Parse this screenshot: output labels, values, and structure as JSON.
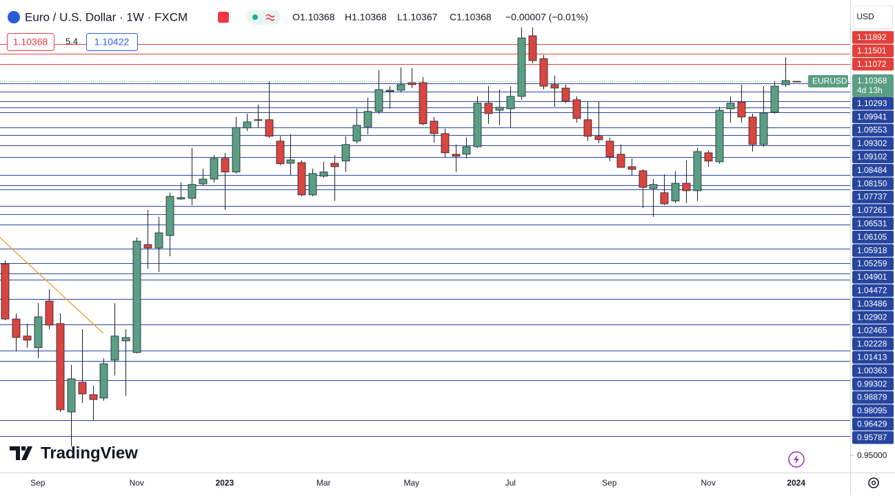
{
  "header": {
    "symbol": "Euro / U.S. Dollar · 1W · FXCM",
    "open": "O1.10368",
    "high": "H1.10368",
    "low": "L1.10367",
    "close": "C1.10368",
    "change": "−0.00007 (−0.01%)"
  },
  "toolbar": {
    "bid": "1.10368",
    "spread": "5.4",
    "ask": "1.10422",
    "currency": "USD"
  },
  "logo": "TradingView",
  "chart_data": {
    "type": "candlestick",
    "categories": [
      null,
      null,
      null,
      "Sep",
      null,
      null,
      null,
      null,
      null,
      null,
      null,
      null,
      "Nov",
      null,
      null,
      null,
      null,
      null,
      null,
      null,
      "2023",
      null,
      null,
      null,
      null,
      null,
      null,
      null,
      null,
      "Mar",
      null,
      null,
      null,
      null,
      null,
      null,
      null,
      "May",
      null,
      null,
      null,
      null,
      null,
      null,
      null,
      null,
      "Jul",
      null,
      null,
      null,
      null,
      null,
      null,
      null,
      null,
      "Sep",
      null,
      null,
      null,
      null,
      null,
      null,
      null,
      null,
      "Nov",
      null,
      null,
      null,
      null,
      null,
      null,
      null,
      "2024"
    ],
    "series": [
      {
        "name": "EURUSD",
        "open": [
          1.0287,
          1.006,
          0.999,
          0.9942,
          1.0134,
          1.0041,
          0.9678,
          0.98,
          0.9749,
          0.9735,
          0.9891,
          0.997,
          0.9922,
          1.0366,
          1.0352,
          1.0403,
          1.0553,
          1.0556,
          1.0615,
          1.0635,
          1.072,
          1.0664,
          1.0845,
          1.0876,
          1.0879,
          1.0791,
          1.07,
          1.0703,
          1.057,
          1.0647,
          1.07,
          1.0709,
          1.0791,
          1.085,
          1.0913,
          1.0995,
          1.1,
          1.1031,
          1.1031,
          1.0873,
          1.0822,
          1.0737,
          1.0737,
          1.0768,
          1.0947,
          1.0918,
          1.0924,
          1.0975,
          1.1224,
          1.113,
          1.1023,
          1.1009,
          1.0961,
          1.0879,
          1.0811,
          1.0791,
          1.0737,
          1.0686,
          1.0669,
          1.0596,
          1.0579,
          1.0545,
          1.0618,
          1.0587,
          1.0743,
          1.0706,
          1.0924,
          1.0952,
          1.089,
          1.0777,
          1.091,
          1.1023,
          1.10368
        ],
        "high": [
          1.0301,
          1.0083,
          1.0041,
          1.0125,
          1.0182,
          1.0083,
          0.9871,
          1.0018,
          0.9786,
          0.9899,
          1.0125,
          1.0018,
          1.0395,
          1.0508,
          1.048,
          1.0579,
          1.0621,
          1.0763,
          1.0678,
          1.0734,
          1.0743,
          1.089,
          1.0904,
          1.0941,
          1.1037,
          1.0811,
          1.0819,
          1.0712,
          1.0678,
          1.0706,
          1.0734,
          1.0811,
          1.0924,
          1.0969,
          1.1082,
          1.1017,
          1.1094,
          1.1091,
          1.1054,
          1.089,
          1.0842,
          1.0777,
          1.0805,
          1.0975,
          1.1017,
          1.1003,
          1.1017,
          1.1258,
          1.1258,
          1.1145,
          1.106,
          1.1023,
          1.0975,
          1.0952,
          1.0952,
          1.0805,
          1.0777,
          1.072,
          1.0675,
          1.0635,
          1.0655,
          1.0669,
          1.0712,
          1.0763,
          1.0754,
          1.0932,
          1.0975,
          1.1023,
          1.0904,
          1.1017,
          1.1037,
          1.1136,
          1.10368
        ],
        "low": [
          1.0055,
          0.9927,
          0.9942,
          0.9899,
          1.0018,
          0.9678,
          0.9537,
          0.9715,
          0.9644,
          0.9724,
          0.9829,
          0.9744,
          0.9918,
          1.0267,
          1.0253,
          1.0318,
          1.055,
          1.0528,
          1.0607,
          1.0621,
          1.0508,
          1.0658,
          1.0833,
          1.0847,
          1.0805,
          1.0692,
          1.0649,
          1.0564,
          1.0564,
          1.0641,
          1.0545,
          1.0664,
          1.0782,
          1.0819,
          1.0904,
          1.0924,
          1.0992,
          1.1009,
          1.0856,
          1.0785,
          1.0726,
          1.0664,
          1.072,
          1.0763,
          1.0862,
          1.0856,
          1.0847,
          1.0961,
          1.1111,
          1.1003,
          1.0932,
          1.0947,
          1.0867,
          1.0791,
          1.0782,
          1.0709,
          1.0683,
          1.0649,
          1.0516,
          1.048,
          1.0528,
          1.0536,
          1.0536,
          1.0545,
          1.0686,
          1.0698,
          1.0867,
          1.0867,
          1.0748,
          1.0768,
          1.0904,
          1.1014,
          1.10367
        ],
        "close": [
          1.006,
          0.9984,
          0.9973,
          1.0069,
          1.0035,
          0.9687,
          0.9814,
          0.9752,
          0.9729,
          0.9876,
          0.999,
          0.9984,
          1.038,
          1.0352,
          1.0414,
          1.0564,
          1.0559,
          1.0613,
          1.0635,
          1.072,
          1.0664,
          1.0847,
          1.087,
          1.0879,
          1.0811,
          1.0698,
          1.0714,
          1.057,
          1.0658,
          1.0664,
          1.0686,
          1.0777,
          1.0856,
          1.0913,
          1.1003,
          1.1,
          1.1023,
          1.1023,
          1.0862,
          1.0822,
          1.0743,
          1.0729,
          1.0768,
          1.0947,
          1.0904,
          1.093,
          1.0975,
          1.1215,
          1.1122,
          1.1017,
          1.1009,
          1.0955,
          1.0884,
          1.0811,
          1.0797,
          1.0726,
          1.0683,
          1.0675,
          1.0601,
          1.0613,
          1.0533,
          1.0618,
          1.0587,
          1.0748,
          1.0709,
          1.0918,
          1.0947,
          1.089,
          1.0777,
          1.0907,
          1.1017,
          1.104,
          1.10368
        ]
      }
    ],
    "up_color": "#5a9e84",
    "down_color": "#d9463f",
    "ylim": [
      0.9429,
      1.1371
    ],
    "yticks": [
      {
        "value": 0.95,
        "label": "0.95000"
      }
    ],
    "levels": [
      1.11892,
      1.11501,
      1.11072,
      1.10293,
      1.09941,
      1.09553,
      1.09302,
      1.09102,
      1.08484,
      {
        "value": 1.0815,
        "label": "1.08150"
      },
      1.07737,
      1.07261,
      1.06531,
      1.06105,
      1.05918,
      1.05259,
      1.04901,
      1.04472,
      1.03486,
      1.02902,
      1.02465,
      1.02228,
      1.01413,
      1.00363,
      0.99302,
      0.98879,
      0.98095,
      0.96429,
      0.95787
    ],
    "resistance_color": "#e2403b",
    "support_color": "#27459e",
    "last_price": 1.10368,
    "countdown": "4d 13h"
  }
}
